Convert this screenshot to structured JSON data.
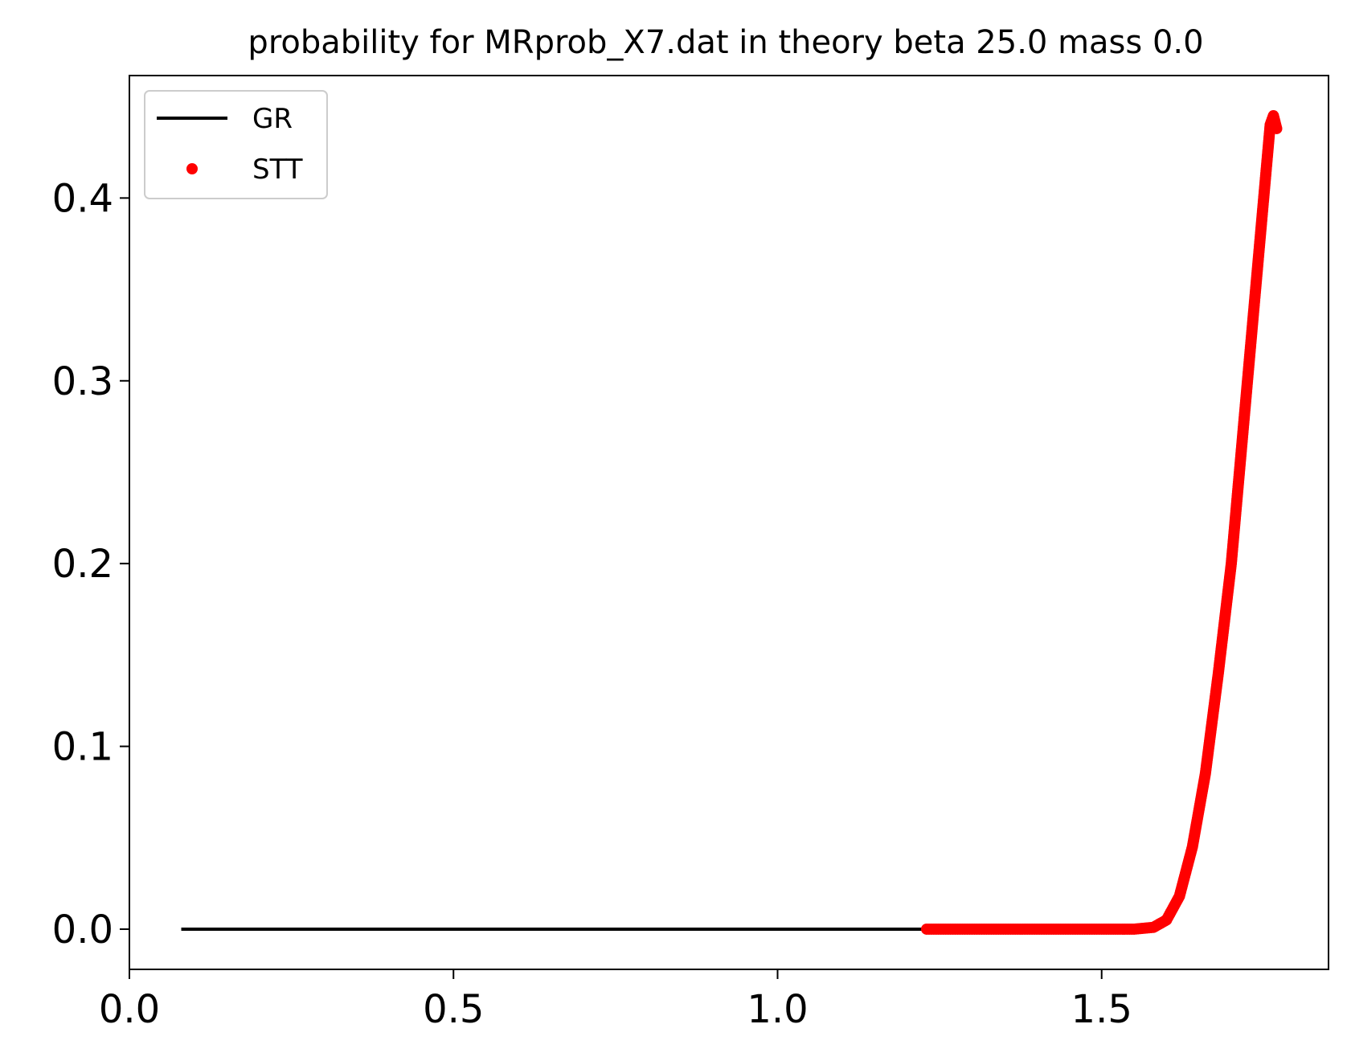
{
  "chart_data": {
    "type": "line",
    "title": "probability for MRprob_X7.dat in theory beta 25.0 mass 0.0",
    "xlabel": "",
    "ylabel": "",
    "xlim": [
      0.0,
      1.85
    ],
    "ylim": [
      -0.022,
      0.467
    ],
    "x_ticks": [
      0.0,
      0.5,
      1.0,
      1.5
    ],
    "x_tick_labels": [
      "0.0",
      "0.5",
      "1.0",
      "1.5"
    ],
    "y_ticks": [
      0.0,
      0.1,
      0.2,
      0.3,
      0.4
    ],
    "y_tick_labels": [
      "0.0",
      "0.1",
      "0.2",
      "0.3",
      "0.4"
    ],
    "grid": false,
    "legend": {
      "placement": "upper-left",
      "entries": [
        {
          "label": "GR",
          "marker": "line",
          "color": "#000000"
        },
        {
          "label": "STT",
          "marker": "dot",
          "color": "#ff0000"
        }
      ]
    },
    "series": [
      {
        "name": "GR",
        "style": "line",
        "color": "#000000",
        "x": [
          0.08,
          1.23
        ],
        "y": [
          0.0,
          0.0
        ]
      },
      {
        "name": "STT",
        "style": "dots",
        "color": "#ff0000",
        "x": [
          1.23,
          1.3,
          1.4,
          1.5,
          1.55,
          1.58,
          1.6,
          1.62,
          1.64,
          1.66,
          1.68,
          1.7,
          1.72,
          1.74,
          1.755,
          1.76,
          1.765,
          1.77
        ],
        "y": [
          0.0,
          0.0,
          0.0,
          0.0,
          0.0,
          0.001,
          0.005,
          0.018,
          0.045,
          0.085,
          0.14,
          0.2,
          0.28,
          0.36,
          0.42,
          0.44,
          0.445,
          0.438
        ]
      }
    ]
  }
}
